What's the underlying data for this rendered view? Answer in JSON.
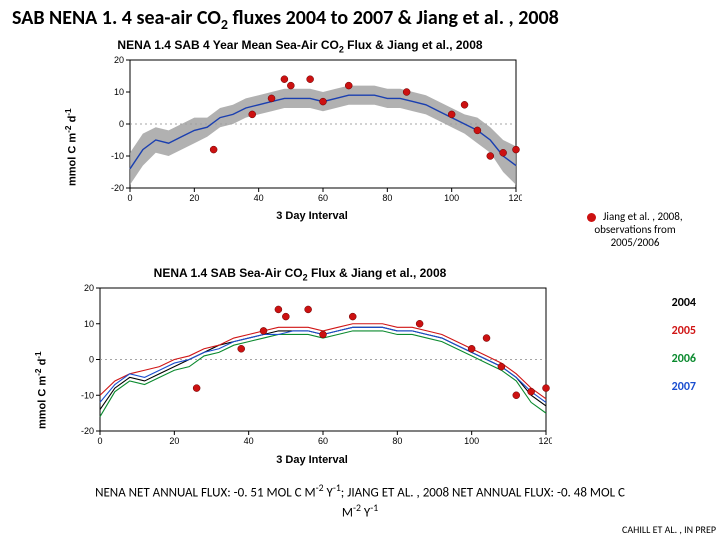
{
  "title_parts": {
    "pre": "SAB NENA 1. 4 sea-air CO",
    "sub": "2",
    "post": " fluxes 2004 to 2007 & Jiang et al. , 2008"
  },
  "chart1": {
    "title_pre": "NENA 1.4 SAB 4 Year Mean Sea-Air CO",
    "title_sub": "2",
    "title_post": " Flux & Jiang et al., 2008",
    "ylabel_pre": "mmol C m",
    "ylabel_sup1": "-2",
    "ylabel_mid": " d",
    "ylabel_sup2": "-1",
    "xlabel": "3 Day Interval",
    "xlim": [
      0,
      120
    ],
    "xticks": [
      0,
      20,
      40,
      60,
      80,
      100,
      120
    ],
    "ylim": [
      -20,
      20
    ],
    "yticks": [
      -20,
      -10,
      0,
      10,
      20
    ],
    "mean_color": "#1a3fb0",
    "band_color": "#9e9e9e",
    "obs_color": "#cc1111",
    "mean": [
      [
        0,
        -14
      ],
      [
        4,
        -8
      ],
      [
        8,
        -5
      ],
      [
        12,
        -6
      ],
      [
        16,
        -4
      ],
      [
        20,
        -2
      ],
      [
        24,
        -1
      ],
      [
        28,
        2
      ],
      [
        32,
        3
      ],
      [
        36,
        5
      ],
      [
        40,
        6
      ],
      [
        44,
        7
      ],
      [
        48,
        8
      ],
      [
        52,
        8
      ],
      [
        56,
        8
      ],
      [
        60,
        7
      ],
      [
        64,
        8
      ],
      [
        68,
        9
      ],
      [
        72,
        9
      ],
      [
        76,
        9
      ],
      [
        80,
        8
      ],
      [
        84,
        8
      ],
      [
        88,
        7
      ],
      [
        92,
        6
      ],
      [
        96,
        4
      ],
      [
        100,
        2
      ],
      [
        104,
        0
      ],
      [
        108,
        -2
      ],
      [
        112,
        -5
      ],
      [
        116,
        -10
      ],
      [
        120,
        -13
      ]
    ],
    "band_halfwidth": [
      5,
      5,
      4,
      4,
      4,
      4,
      3,
      3,
      3,
      3,
      3,
      3,
      3,
      3,
      3,
      3,
      3,
      3,
      3,
      3,
      3,
      3,
      3,
      3,
      3,
      3,
      3,
      4,
      4,
      5,
      6
    ],
    "obs": [
      [
        26,
        -8
      ],
      [
        38,
        3
      ],
      [
        44,
        8
      ],
      [
        48,
        14
      ],
      [
        50,
        12
      ],
      [
        56,
        14
      ],
      [
        60,
        7
      ],
      [
        68,
        12
      ],
      [
        86,
        10
      ],
      [
        100,
        3
      ],
      [
        104,
        6
      ],
      [
        108,
        -2
      ],
      [
        112,
        -10
      ],
      [
        116,
        -9
      ],
      [
        120,
        -8
      ]
    ],
    "background_color": "#ffffff",
    "axis_color": "#000000",
    "line_width": 1.4,
    "marker_size": 5
  },
  "obs_note": {
    "dot_color": "#cc1111",
    "line1": "Jiang et al. , 2008,",
    "line2": "observations from",
    "line3": "2005/2006"
  },
  "chart2": {
    "title_pre": "NENA 1.4 SAB Sea-Air CO",
    "title_sub": "2",
    "title_post": " Flux & Jiang et al., 2008",
    "ylabel_pre": "mmol C m",
    "ylabel_sup1": "-2",
    "ylabel_mid": " d",
    "ylabel_sup2": "-1",
    "xlabel": "3 Day Interval",
    "xlim": [
      0,
      120
    ],
    "xticks": [
      0,
      20,
      40,
      60,
      80,
      100,
      120
    ],
    "ylim": [
      -20,
      20
    ],
    "yticks": [
      -20,
      -10,
      0,
      10,
      20
    ],
    "obs_color": "#cc1111",
    "obs": [
      [
        26,
        -8
      ],
      [
        38,
        3
      ],
      [
        44,
        8
      ],
      [
        48,
        14
      ],
      [
        50,
        12
      ],
      [
        56,
        14
      ],
      [
        60,
        7
      ],
      [
        68,
        12
      ],
      [
        86,
        10
      ],
      [
        100,
        3
      ],
      [
        104,
        6
      ],
      [
        108,
        -2
      ],
      [
        112,
        -10
      ],
      [
        116,
        -9
      ],
      [
        120,
        -8
      ]
    ],
    "series": [
      {
        "year": "2004",
        "color": "#000000",
        "data": [
          [
            0,
            -14
          ],
          [
            4,
            -8
          ],
          [
            8,
            -5
          ],
          [
            12,
            -6
          ],
          [
            16,
            -4
          ],
          [
            20,
            -2
          ],
          [
            24,
            0
          ],
          [
            28,
            2
          ],
          [
            32,
            4
          ],
          [
            36,
            5
          ],
          [
            40,
            6
          ],
          [
            44,
            7
          ],
          [
            48,
            8
          ],
          [
            52,
            8
          ],
          [
            56,
            8
          ],
          [
            60,
            7
          ],
          [
            64,
            8
          ],
          [
            68,
            9
          ],
          [
            72,
            9
          ],
          [
            76,
            9
          ],
          [
            80,
            8
          ],
          [
            84,
            8
          ],
          [
            88,
            7
          ],
          [
            92,
            6
          ],
          [
            96,
            4
          ],
          [
            100,
            2
          ],
          [
            104,
            0
          ],
          [
            108,
            -2
          ],
          [
            112,
            -5
          ],
          [
            116,
            -10
          ],
          [
            120,
            -13
          ]
        ]
      },
      {
        "year": "2005",
        "color": "#d01515",
        "data": [
          [
            0,
            -10
          ],
          [
            4,
            -6
          ],
          [
            8,
            -4
          ],
          [
            12,
            -3
          ],
          [
            16,
            -2
          ],
          [
            20,
            0
          ],
          [
            24,
            1
          ],
          [
            28,
            3
          ],
          [
            32,
            4
          ],
          [
            36,
            6
          ],
          [
            40,
            7
          ],
          [
            44,
            8
          ],
          [
            48,
            9
          ],
          [
            52,
            9
          ],
          [
            56,
            9
          ],
          [
            60,
            8
          ],
          [
            64,
            9
          ],
          [
            68,
            10
          ],
          [
            72,
            10
          ],
          [
            76,
            10
          ],
          [
            80,
            9
          ],
          [
            84,
            9
          ],
          [
            88,
            8
          ],
          [
            92,
            7
          ],
          [
            96,
            5
          ],
          [
            100,
            3
          ],
          [
            104,
            1
          ],
          [
            108,
            -1
          ],
          [
            112,
            -4
          ],
          [
            116,
            -8
          ],
          [
            120,
            -11
          ]
        ]
      },
      {
        "year": "2006",
        "color": "#0a8a2e",
        "data": [
          [
            0,
            -16
          ],
          [
            4,
            -9
          ],
          [
            8,
            -6
          ],
          [
            12,
            -7
          ],
          [
            16,
            -5
          ],
          [
            20,
            -3
          ],
          [
            24,
            -2
          ],
          [
            28,
            1
          ],
          [
            32,
            2
          ],
          [
            36,
            4
          ],
          [
            40,
            5
          ],
          [
            44,
            6
          ],
          [
            48,
            7
          ],
          [
            52,
            7
          ],
          [
            56,
            7
          ],
          [
            60,
            6
          ],
          [
            64,
            7
          ],
          [
            68,
            8
          ],
          [
            72,
            8
          ],
          [
            76,
            8
          ],
          [
            80,
            7
          ],
          [
            84,
            7
          ],
          [
            88,
            6
          ],
          [
            92,
            5
          ],
          [
            96,
            3
          ],
          [
            100,
            1
          ],
          [
            104,
            -1
          ],
          [
            108,
            -3
          ],
          [
            112,
            -6
          ],
          [
            116,
            -12
          ],
          [
            120,
            -15
          ]
        ]
      },
      {
        "year": "2007",
        "color": "#1a4ed0",
        "data": [
          [
            0,
            -12
          ],
          [
            4,
            -7
          ],
          [
            8,
            -4
          ],
          [
            12,
            -5
          ],
          [
            16,
            -3
          ],
          [
            20,
            -1
          ],
          [
            24,
            0
          ],
          [
            28,
            2
          ],
          [
            32,
            3
          ],
          [
            36,
            5
          ],
          [
            40,
            6
          ],
          [
            44,
            7
          ],
          [
            48,
            7
          ],
          [
            52,
            8
          ],
          [
            56,
            8
          ],
          [
            60,
            7
          ],
          [
            64,
            8
          ],
          [
            68,
            9
          ],
          [
            72,
            9
          ],
          [
            76,
            9
          ],
          [
            80,
            8
          ],
          [
            84,
            8
          ],
          [
            88,
            7
          ],
          [
            92,
            6
          ],
          [
            96,
            4
          ],
          [
            100,
            2
          ],
          [
            104,
            0
          ],
          [
            108,
            -2
          ],
          [
            112,
            -5
          ],
          [
            116,
            -9
          ],
          [
            120,
            -12
          ]
        ]
      }
    ],
    "background_color": "#ffffff",
    "axis_color": "#000000",
    "line_width": 1.1,
    "marker_size": 5
  },
  "year_legend": [
    {
      "label": "2004",
      "color": "#000000"
    },
    {
      "label": "2005",
      "color": "#d01515"
    },
    {
      "label": "2006",
      "color": "#0a8a2e"
    },
    {
      "label": "2007",
      "color": "#1a4ed0"
    }
  ],
  "footer": {
    "p1": "NENA NET ANNUAL FLUX: -0. 51 MOL C M",
    "p2": "-2",
    "p3": " Y",
    "p4": "-1",
    "p5": "; JIANG ET AL. , 2008 NET ANNUAL FLUX: -0. 48 MOL C ",
    "p6_pre": "M",
    "p6": "-2",
    "p7": " Y",
    "p8": "-1"
  },
  "credit": "CAHILL ET AL. , IN PREP"
}
